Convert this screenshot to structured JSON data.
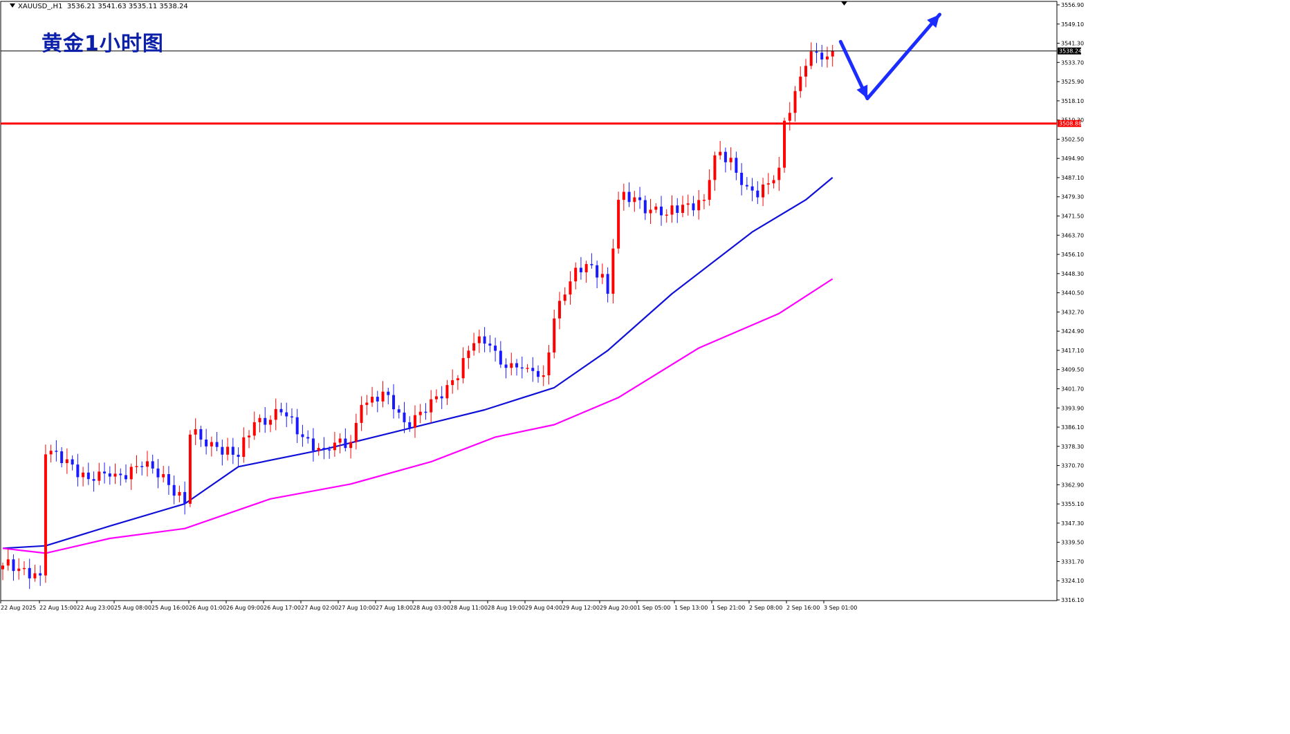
{
  "header": {
    "symbol_timeframe": "XAUUSD_,H1",
    "ohlc": "3536.21 3541.63 3535.11 3538.24"
  },
  "annotation_title": "黄金1小时图",
  "colors": {
    "bull": "#ff0000",
    "bear": "#1a1aff",
    "ma_fast": "#1010d8",
    "ma_slow": "#ff00ff",
    "resistance": "#ff0000",
    "arrow": "#1a2cff",
    "axis": "#000000"
  },
  "chart_data": {
    "type": "candlestick",
    "symbol": "XAUUSD",
    "timeframe": "H1",
    "ylim": [
      3316.1,
      3556.9
    ],
    "y_ticks": [
      "3556.90",
      "3549.10",
      "3541.30",
      "3533.70",
      "3525.90",
      "3518.10",
      "3510.30",
      "3502.50",
      "3494.90",
      "3487.10",
      "3479.30",
      "3471.50",
      "3463.70",
      "3456.10",
      "3448.30",
      "3440.50",
      "3432.70",
      "3424.90",
      "3417.10",
      "3409.50",
      "3401.70",
      "3393.90",
      "3386.10",
      "3378.30",
      "3370.70",
      "3362.90",
      "3355.10",
      "3347.30",
      "3339.50",
      "3331.70",
      "3324.10",
      "3316.10"
    ],
    "x_ticks": [
      "22 Aug 2025",
      "22 Aug 15:00",
      "22 Aug 23:00",
      "25 Aug 08:00",
      "25 Aug 16:00",
      "26 Aug 01:00",
      "26 Aug 09:00",
      "26 Aug 17:00",
      "27 Aug 02:00",
      "27 Aug 10:00",
      "27 Aug 18:00",
      "28 Aug 03:00",
      "28 Aug 11:00",
      "28 Aug 19:00",
      "29 Aug 04:00",
      "29 Aug 12:00",
      "29 Aug 20:00",
      "1 Sep 05:00",
      "1 Sep 13:00",
      "1 Sep 21:00",
      "2 Sep 08:00",
      "2 Sep 16:00",
      "3 Sep 01:00"
    ],
    "price_labels": {
      "current": "3538.24",
      "current_value": 3538.24,
      "resistance": "3508.88",
      "resistance_value": 3508.88
    },
    "anchors": [
      {
        "i": 0,
        "c": 3330
      },
      {
        "i": 4,
        "c": 3329
      },
      {
        "i": 7,
        "c": 3326
      },
      {
        "i": 8,
        "c": 3375
      },
      {
        "i": 12,
        "c": 3373
      },
      {
        "i": 16,
        "c": 3365
      },
      {
        "i": 20,
        "c": 3366
      },
      {
        "i": 26,
        "c": 3370
      },
      {
        "i": 30,
        "c": 3367
      },
      {
        "i": 34,
        "c": 3355
      },
      {
        "i": 35,
        "c": 3383
      },
      {
        "i": 40,
        "c": 3378
      },
      {
        "i": 44,
        "c": 3374
      },
      {
        "i": 47,
        "c": 3388
      },
      {
        "i": 52,
        "c": 3392
      },
      {
        "i": 56,
        "c": 3382
      },
      {
        "i": 60,
        "c": 3377
      },
      {
        "i": 65,
        "c": 3380
      },
      {
        "i": 67,
        "c": 3395
      },
      {
        "i": 72,
        "c": 3399
      },
      {
        "i": 75,
        "c": 3388
      },
      {
        "i": 79,
        "c": 3392
      },
      {
        "i": 84,
        "c": 3405
      },
      {
        "i": 88,
        "c": 3420
      },
      {
        "i": 91,
        "c": 3419
      },
      {
        "i": 94,
        "c": 3410
      },
      {
        "i": 98,
        "c": 3410
      },
      {
        "i": 101,
        "c": 3407
      },
      {
        "i": 103,
        "c": 3430
      },
      {
        "i": 106,
        "c": 3445
      },
      {
        "i": 109,
        "c": 3452
      },
      {
        "i": 112,
        "c": 3448
      },
      {
        "i": 113,
        "c": 3440
      },
      {
        "i": 115,
        "c": 3478
      },
      {
        "i": 118,
        "c": 3479
      },
      {
        "i": 121,
        "c": 3474
      },
      {
        "i": 124,
        "c": 3472
      },
      {
        "i": 127,
        "c": 3476
      },
      {
        "i": 131,
        "c": 3478
      },
      {
        "i": 133,
        "c": 3496
      },
      {
        "i": 136,
        "c": 3495
      },
      {
        "i": 138,
        "c": 3484
      },
      {
        "i": 141,
        "c": 3479
      },
      {
        "i": 144,
        "c": 3486
      },
      {
        "i": 145,
        "c": 3491
      },
      {
        "i": 146,
        "c": 3510
      },
      {
        "i": 148,
        "c": 3522
      },
      {
        "i": 151,
        "c": 3538
      },
      {
        "i": 154,
        "c": 3536
      },
      {
        "i": 155,
        "c": 3538.24
      }
    ],
    "series": [
      {
        "name": "MA fast",
        "points": [
          [
            0,
            3337
          ],
          [
            8,
            3338
          ],
          [
            20,
            3346
          ],
          [
            34,
            3355
          ],
          [
            44,
            3370
          ],
          [
            60,
            3377
          ],
          [
            75,
            3385
          ],
          [
            90,
            3393
          ],
          [
            103,
            3402
          ],
          [
            113,
            3417
          ],
          [
            125,
            3440
          ],
          [
            140,
            3465
          ],
          [
            150,
            3478
          ],
          [
            155,
            3487
          ]
        ]
      },
      {
        "name": "MA slow",
        "points": [
          [
            0,
            3337
          ],
          [
            8,
            3335
          ],
          [
            20,
            3341
          ],
          [
            34,
            3345
          ],
          [
            50,
            3357
          ],
          [
            65,
            3363
          ],
          [
            80,
            3372
          ],
          [
            92,
            3382
          ],
          [
            103,
            3387
          ],
          [
            115,
            3398
          ],
          [
            130,
            3418
          ],
          [
            145,
            3432
          ],
          [
            155,
            3446
          ]
        ]
      }
    ],
    "forecast_arrows": [
      {
        "from": [
          3542,
          156.5
        ],
        "to": [
          3519,
          161.5
        ]
      },
      {
        "from": [
          3519,
          161.5
        ],
        "to": [
          3553,
          175
        ]
      }
    ]
  }
}
